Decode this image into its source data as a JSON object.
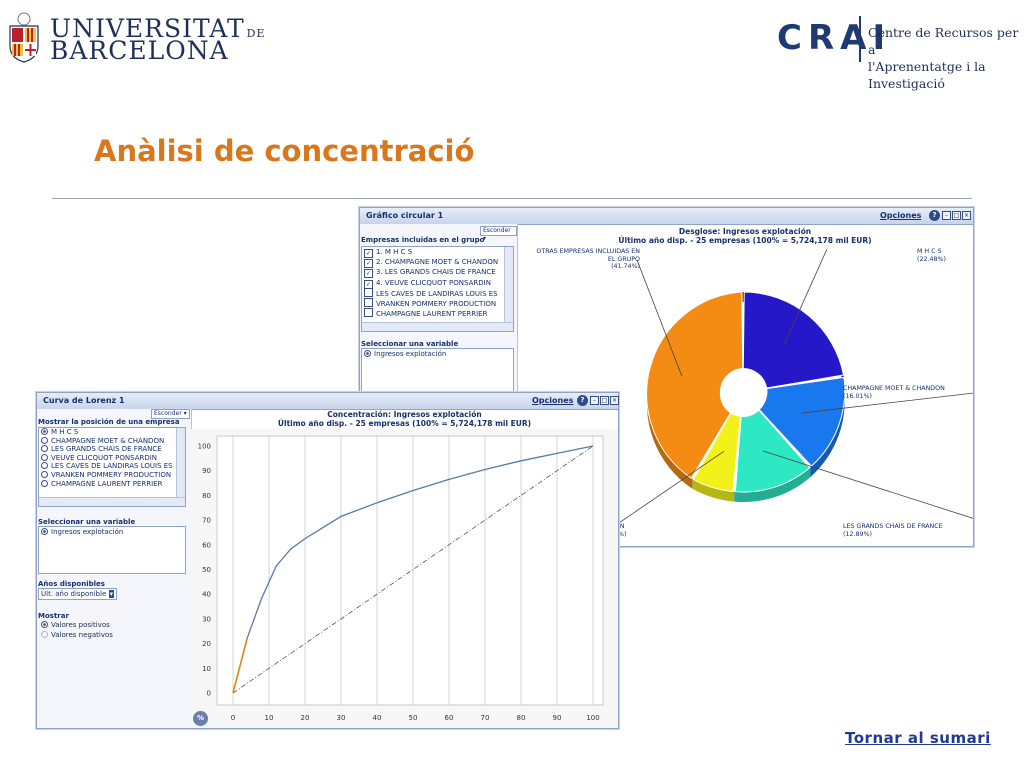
{
  "header": {
    "university_line1": "UNIVERSITAT",
    "university_de": "DE",
    "university_line2": "BARCELONA",
    "crai_word": "CRAI",
    "crai_line1": "Centre de Recursos per a",
    "crai_line2": "l'Aprenentatge i la Investigació"
  },
  "slide_title": "Anàlisi de concentració",
  "back_link": "Tornar al sumari",
  "pie_window": {
    "title": "Gráfico circular 1",
    "options_label": "Opciones",
    "hide_label": "Esconder",
    "companies_heading": "Empresas incluidas en el grupo",
    "companies": [
      {
        "label": "1. M H C S",
        "checked": true
      },
      {
        "label": "2. CHAMPAGNE MOET & CHANDON",
        "checked": true
      },
      {
        "label": "3. LES GRANDS CHAIS DE FRANCE",
        "checked": true
      },
      {
        "label": "4. VEUVE CLICQUOT PONSARDIN",
        "checked": true
      },
      {
        "label": "LES CAVES DE LANDIRAS LOUIS ES",
        "checked": false
      },
      {
        "label": "VRANKEN POMMERY PRODUCTION",
        "checked": false
      },
      {
        "label": "CHAMPAGNE LAURENT PERRIER",
        "checked": false
      }
    ],
    "variable_heading": "Seleccionar una variable",
    "variable": "Ingresos explotación",
    "chart_title1": "Desglose: Ingresos explotación",
    "chart_title2": "Último año disp. - 25 empresas (100% = 5,724,178 mil EUR)"
  },
  "chart_data": [
    {
      "type": "pie",
      "title": "Desglose: Ingresos explotación",
      "subtitle": "Último año disp. - 25 empresas (100% = 5,724,178 mil EUR)",
      "slices": [
        {
          "label": "M H C S",
          "value": 22.48,
          "pct_label": "(22.48%)",
          "color": "#2418c8"
        },
        {
          "label": "CHAMPAGNE MOET & CHANDON",
          "value": 16.01,
          "pct_label": "(16.01%)",
          "color": "#1a78ee"
        },
        {
          "label": "LES GRANDS CHAIS DE FRANCE",
          "value": 12.89,
          "pct_label": "(12.89%)",
          "color": "#2ee8c4"
        },
        {
          "label": "",
          "value": 6.88,
          "pct_label": "%)",
          "color": "#f2f21a"
        },
        {
          "label": "OTRAS EMPRESAS INCLUIDAS EN EL GRUPO",
          "value": 41.74,
          "pct_label": "(41.74%)",
          "color": "#f48c14"
        }
      ]
    },
    {
      "type": "line",
      "title": "Concentración: Ingresos explotación",
      "subtitle": "Último año disp. - 25 empresas (100% = 5,724,178 mil EUR)",
      "x_ticks": [
        0,
        10,
        20,
        30,
        40,
        50,
        60,
        70,
        80,
        90,
        100
      ],
      "y_ticks": [
        0,
        10,
        20,
        30,
        40,
        50,
        60,
        70,
        80,
        90,
        100
      ],
      "xlim": [
        0,
        100
      ],
      "ylim": [
        0,
        100
      ],
      "series": [
        {
          "x": [
            0,
            4,
            8,
            12,
            16,
            20,
            25,
            30,
            40,
            50,
            60,
            70,
            80,
            90,
            100
          ],
          "y": [
            0,
            22.48,
            38.49,
            51.38,
            58.26,
            62.5,
            67,
            71.5,
            77,
            82,
            86.5,
            90.5,
            94,
            97,
            100
          ]
        },
        {
          "x": [
            0,
            100
          ],
          "y": [
            0,
            100
          ]
        }
      ],
      "highlight_segment": {
        "x": [
          0,
          4
        ],
        "y": [
          0,
          22.48
        ]
      },
      "grid": true
    }
  ],
  "lorenz_window": {
    "title": "Curva de Lorenz 1",
    "options_label": "Opciones",
    "hide_label": "Esconder",
    "position_heading": "Mostrar la posición de una empresa",
    "companies": [
      {
        "label": "M H C S",
        "selected": true
      },
      {
        "label": "CHAMPAGNE MOET & CHANDON",
        "selected": false
      },
      {
        "label": "LES GRANDS CHAIS DE FRANCE",
        "selected": false
      },
      {
        "label": "VEUVE CLICQUOT PONSARDIN",
        "selected": false
      },
      {
        "label": "LES CAVES DE LANDIRAS LOUIS ES",
        "selected": false
      },
      {
        "label": "VRANKEN POMMERY PRODUCTION",
        "selected": false
      },
      {
        "label": "CHAMPAGNE LAURENT PERRIER",
        "selected": false
      }
    ],
    "variable_heading": "Seleccionar una variable",
    "variable": "Ingresos explotación",
    "years_heading": "Años disponibles",
    "years_value": "Últ. año disponible",
    "show_heading": "Mostrar",
    "show_positive": "Valores positivos",
    "show_negative": "Valores negativos",
    "chart_title1": "Concentración: Ingresos explotación",
    "chart_title2": "Último año disp. - 25 empresas (100% = 5,724,178 mil EUR)",
    "percent_badge": "%"
  }
}
